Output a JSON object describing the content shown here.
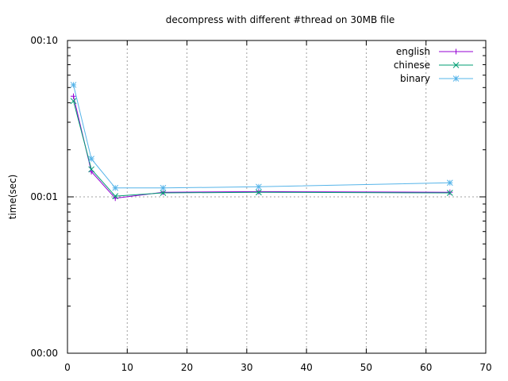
{
  "chart_data": {
    "type": "line",
    "title": "decompress with different #thread on 30MB file",
    "xlabel": "",
    "ylabel": "time(sec)",
    "xlim": [
      0,
      70
    ],
    "x_ticks": [
      0,
      10,
      20,
      30,
      40,
      50,
      60,
      70
    ],
    "y_scale": "log",
    "ylim": [
      0.1,
      10
    ],
    "y_ticks": [
      {
        "value": 0.1,
        "label": "00:00"
      },
      {
        "value": 1,
        "label": "00:01"
      },
      {
        "value": 10,
        "label": "00:10"
      }
    ],
    "grid": true,
    "legend_position": "top-right",
    "series": [
      {
        "name": "english",
        "marker": "plus",
        "color": "#9400d3",
        "x": [
          1,
          4,
          8,
          16,
          32,
          64
        ],
        "y": [
          4.4,
          1.45,
          0.98,
          1.07,
          1.08,
          1.07
        ]
      },
      {
        "name": "chinese",
        "marker": "cross",
        "color": "#009e73",
        "x": [
          1,
          4,
          8,
          16,
          32,
          64
        ],
        "y": [
          4.1,
          1.5,
          1.01,
          1.06,
          1.07,
          1.06
        ]
      },
      {
        "name": "binary",
        "marker": "star",
        "color": "#56b4e9",
        "x": [
          1,
          4,
          8,
          16,
          32,
          64
        ],
        "y": [
          5.2,
          1.75,
          1.14,
          1.14,
          1.16,
          1.23
        ]
      }
    ]
  }
}
